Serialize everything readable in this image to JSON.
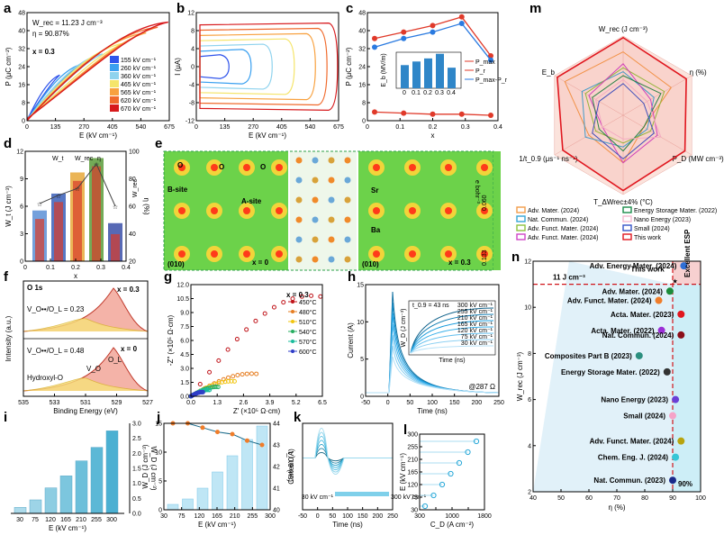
{
  "panel_labels": [
    "a",
    "b",
    "c",
    "d",
    "e",
    "f",
    "g",
    "h",
    "i",
    "j",
    "k",
    "l",
    "m",
    "n"
  ],
  "chart_data": [
    {
      "panel": "a",
      "type": "line",
      "xlabel": "E (kV cm⁻¹)",
      "ylabel": "P (μC cm⁻²)",
      "xlim": [
        0,
        675
      ],
      "ylim": [
        0,
        48
      ],
      "xticks": [
        "0",
        "135",
        "270",
        "405",
        "540",
        "675"
      ],
      "yticks": [
        "0",
        "8",
        "16",
        "24",
        "32",
        "40",
        "48"
      ],
      "annotations": [
        "W_rec = 11.23 J cm⁻³",
        "η = 90.87%",
        "x = 0.3"
      ],
      "series": [
        {
          "name": "155 kV cm⁻¹",
          "color": "#2f54eb",
          "emax": 155
        },
        {
          "name": "260 kV cm⁻¹",
          "color": "#3aa0f0",
          "emax": 260
        },
        {
          "name": "360 kV cm⁻¹",
          "color": "#8fd3ee",
          "emax": 360
        },
        {
          "name": "465 kV cm⁻¹",
          "color": "#f5e56b",
          "emax": 465
        },
        {
          "name": "565 kV cm⁻¹",
          "color": "#f8a13f",
          "emax": 565
        },
        {
          "name": "620 kV cm⁻¹",
          "color": "#f06a2c",
          "emax": 620
        },
        {
          "name": "670 kV cm⁻¹",
          "color": "#d7191c",
          "emax": 670
        }
      ]
    },
    {
      "panel": "b",
      "type": "line",
      "xlabel": "E (kV cm⁻¹)",
      "ylabel": "I (μA)",
      "xlim": [
        0,
        675
      ],
      "ylim": [
        -12,
        12
      ],
      "xticks": [
        "0",
        "135",
        "270",
        "405",
        "540",
        "675"
      ],
      "yticks": [
        "-12",
        "-8",
        "-4",
        "0",
        "4",
        "8",
        "12"
      ]
    },
    {
      "panel": "c",
      "type": "line",
      "xlabel": "x",
      "ylabel": "P (μC cm⁻²)",
      "x": [
        0,
        0.1,
        0.2,
        0.3,
        0.4
      ],
      "ylim": [
        0,
        50
      ],
      "yticks": [
        "0",
        "8",
        "16",
        "24",
        "32",
        "40",
        "48"
      ],
      "series": [
        {
          "name": "P_max",
          "values": [
            38,
            41,
            44,
            48,
            30
          ],
          "color": "#e03a2a"
        },
        {
          "name": "P_r",
          "values": [
            4,
            3.5,
            3,
            3,
            2.5
          ],
          "color": "#e03a2a"
        },
        {
          "name": "P_max-P_r",
          "values": [
            34,
            38,
            41,
            45,
            28
          ],
          "color": "#2a7ae0"
        }
      ],
      "inset": {
        "ylabel": "E_b (MV/m)",
        "x": [
          "0",
          "0.1",
          "0.2",
          "0.3",
          "0.4"
        ],
        "values": [
          45,
          52,
          58,
          67,
          40
        ],
        "yticks": [
          "20",
          "40",
          "60"
        ]
      }
    },
    {
      "panel": "d",
      "type": "bar",
      "xlabel": "x",
      "ylabel": "W_t (J cm⁻³)",
      "y2label": "η (%)",
      "categories": [
        "0",
        "0.1",
        "0.2",
        "0.3",
        "0.4"
      ],
      "series": [
        {
          "name": "W_t",
          "values": [
            6,
            8,
            10.5,
            12.2,
            4.5
          ]
        },
        {
          "name": "W_rec",
          "values": [
            5,
            7,
            9.5,
            11.23,
            3.2
          ]
        },
        {
          "name": "η",
          "values": [
            62,
            68,
            73,
            90.87,
            60
          ]
        }
      ],
      "yticks": [
        "0",
        "3",
        "6",
        "9",
        "12"
      ],
      "y2ticks": [
        "20",
        "40",
        "60",
        "80",
        "100"
      ]
    },
    {
      "panel": "e",
      "type": "heatmap",
      "labels": [
        "O",
        "O",
        "O",
        "B-site",
        "A-site",
        "(010)",
        "x = 0",
        "(010)",
        "x = 0.3",
        "Sr",
        "Ba"
      ],
      "colorbar": {
        "max": "0.060",
        "min": "0.133",
        "unit": "e bohr⁻³"
      }
    },
    {
      "panel": "f",
      "type": "line",
      "title": "O 1s",
      "xlabel": "Binding Energy (eV)",
      "ylabel": "Intensity (a.u.)",
      "xticks": [
        "535",
        "533",
        "531",
        "529",
        "527"
      ],
      "annotations": [
        "V_O••/O_L = 0.23",
        "x = 0.3",
        "V_O••/O_L = 0.48",
        "V_O",
        "O_L",
        "Hydroxyl-O",
        "x = 0"
      ]
    },
    {
      "panel": "g",
      "type": "scatter",
      "xlabel": "Z′ (×10⁵ Ω·cm)",
      "ylabel": "-Z″ (×10⁵ Ω·cm)",
      "title": "x = 0.3",
      "xticks": [
        "0.0",
        "1.3",
        "2.6",
        "3.9",
        "5.2",
        "6.5"
      ],
      "yticks": [
        "0.0",
        "1.5",
        "3.0",
        "4.5",
        "6.0",
        "7.5",
        "9.0",
        "10.5",
        "12.0"
      ],
      "series": [
        {
          "name": "450°C",
          "color": "#c0141a"
        },
        {
          "name": "480°C",
          "color": "#e67e22"
        },
        {
          "name": "510°C",
          "color": "#f1c40f"
        },
        {
          "name": "540°C",
          "color": "#27ae60"
        },
        {
          "name": "570°C",
          "color": "#1abc9c"
        },
        {
          "name": "600°C",
          "color": "#2e3cc8"
        }
      ]
    },
    {
      "panel": "h",
      "type": "line",
      "xlabel": "Time (ns)",
      "ylabel": "Current (A)",
      "xticks": [
        "-50",
        "0",
        "50",
        "100",
        "150",
        "200",
        "250"
      ],
      "yticks": [
        "0",
        "5",
        "10",
        "15"
      ],
      "annotations": [
        "@287 Ω",
        "t_0.9 = 43 ns"
      ],
      "inset": {
        "xlabel": "Time (ns)",
        "ylabel": "W_D (J cm⁻³)",
        "legend": [
          "300 kV cm⁻¹",
          "255 kV cm⁻¹",
          "210 kV cm⁻¹",
          "165 kV cm⁻¹",
          "120 kV cm⁻¹",
          "75 kV cm⁻¹",
          "30 kV cm⁻¹"
        ]
      }
    },
    {
      "panel": "i",
      "type": "bar",
      "xlabel": "E (kV cm⁻¹)",
      "ylabel": "W_D (J cm⁻³)",
      "categories": [
        "30",
        "75",
        "120",
        "165",
        "210",
        "255",
        "300"
      ],
      "values": [
        0.2,
        0.45,
        0.85,
        1.25,
        1.75,
        2.2,
        2.75
      ],
      "yticks": [
        "0.0",
        "0.5",
        "1.0",
        "1.5",
        "2.0",
        "2.5",
        "3.0"
      ]
    },
    {
      "panel": "j",
      "type": "bar",
      "xlabel": "E (kV cm⁻¹)",
      "ylabel": "W_D (J cm⁻³)",
      "y2label": "t_0.9 (ns)",
      "categories": [
        "30",
        "75",
        "120",
        "165",
        "210",
        "255",
        "300"
      ],
      "values": [
        1,
        2,
        4,
        7,
        10,
        13,
        15.5
      ],
      "t09": [
        44,
        44,
        43.8,
        43.6,
        43.5,
        43.2,
        43
      ],
      "yticks": [
        "0",
        "5",
        "10",
        "15"
      ],
      "y2ticks": [
        "40",
        "41",
        "42",
        "43",
        "44"
      ]
    },
    {
      "panel": "k",
      "type": "line",
      "xlabel": "Time (ns)",
      "ylabel": "Current (A)",
      "xticks": [
        "-50",
        "0",
        "50",
        "100",
        "150",
        "200",
        "250"
      ],
      "legend": [
        "30 kV cm⁻¹",
        "300 kV cm⁻¹"
      ]
    },
    {
      "panel": "l",
      "type": "scatter",
      "xlabel": "C_D (A cm⁻²)",
      "ylabel": "E (kV cm⁻¹)",
      "xticks": [
        "200",
        "600",
        "1000",
        "1400",
        "1800"
      ],
      "yticks": [
        "30",
        "75",
        "120",
        "165",
        "210",
        "255",
        "300"
      ]
    },
    {
      "panel": "m",
      "type": "radar",
      "axes": [
        "W_rec (J cm⁻³)",
        "η (%)",
        "P_D (MW cm⁻³)",
        "T_ΔWrec±4% (°C)",
        "1/t_0.9 (μs⁻¹ ns⁻¹)",
        "E_b"
      ],
      "series": [
        {
          "name": "Adv. Mater. (2024)",
          "color": "#f39c4a"
        },
        {
          "name": "Nat. Commun. (2024)",
          "color": "#35a5d6"
        },
        {
          "name": "Adv. Funct. Mater. (2024)",
          "color": "#8fc23e"
        },
        {
          "name": "Adv. Funct. Mater. (2024)",
          "color": "#cf45c7"
        },
        {
          "name": "Energy Storage Mater. (2022)",
          "color": "#1b8c4a"
        },
        {
          "name": "Nano Energy (2023)",
          "color": "#f5b8d0"
        },
        {
          "name": "Small (2024)",
          "color": "#3555c8"
        },
        {
          "name": "This work",
          "color": "#e0171f"
        }
      ]
    },
    {
      "panel": "n",
      "type": "scatter",
      "xlabel": "η (%)",
      "ylabel": "W_rec (J cm⁻³)",
      "xlim": [
        40,
        100
      ],
      "ylim": [
        2,
        12
      ],
      "xticks": [
        "40",
        "50",
        "60",
        "70",
        "80",
        "90",
        "100"
      ],
      "yticks": [
        "2",
        "4",
        "6",
        "8",
        "10",
        "12"
      ],
      "annotations": [
        "11 J cm⁻³",
        "This work",
        "Excellent ESP",
        "90%"
      ],
      "points": [
        {
          "label": "Adv. Energy Mater. (2024)",
          "eta": 94,
          "w": 11.8,
          "color": "#2f6fd6"
        },
        {
          "label": "This work",
          "eta": 90.87,
          "w": 11.23,
          "color": "#e0171f"
        },
        {
          "label": "Adv. Mater. (2024)",
          "eta": 89,
          "w": 10.7,
          "color": "#1b8c3a"
        },
        {
          "label": "Adv. Funct. Mater. (2024)",
          "eta": 85,
          "w": 10.3,
          "color": "#f07d2a"
        },
        {
          "label": "Acta. Mater. (2023)",
          "eta": 93,
          "w": 9.7,
          "color": "#e0171f"
        },
        {
          "label": "Acta. Mater. (2022)",
          "eta": 86,
          "w": 9.0,
          "color": "#9b2fd6"
        },
        {
          "label": "Nat. Commun. (2024)",
          "eta": 93,
          "w": 8.8,
          "color": "#8b0f1a"
        },
        {
          "label": "Composites Part B (2023)",
          "eta": 78,
          "w": 7.9,
          "color": "#2c8f7f"
        },
        {
          "label": "Energy Storage Mater. (2022)",
          "eta": 88,
          "w": 7.2,
          "color": "#333333"
        },
        {
          "label": "Nano Energy (2023)",
          "eta": 91,
          "w": 6.0,
          "color": "#6a3fd6"
        },
        {
          "label": "Small (2024)",
          "eta": 90,
          "w": 5.3,
          "color": "#f5a3c8"
        },
        {
          "label": "Adv. Funct. Mater. (2024)",
          "eta": 93,
          "w": 4.2,
          "color": "#b8a40e"
        },
        {
          "label": "Chem. Eng. J. (2024)",
          "eta": 91,
          "w": 3.5,
          "color": "#37c6d6"
        },
        {
          "label": "Nat. Commun. (2023)",
          "eta": 90,
          "w": 2.5,
          "color": "#1a2a8a"
        }
      ]
    }
  ]
}
